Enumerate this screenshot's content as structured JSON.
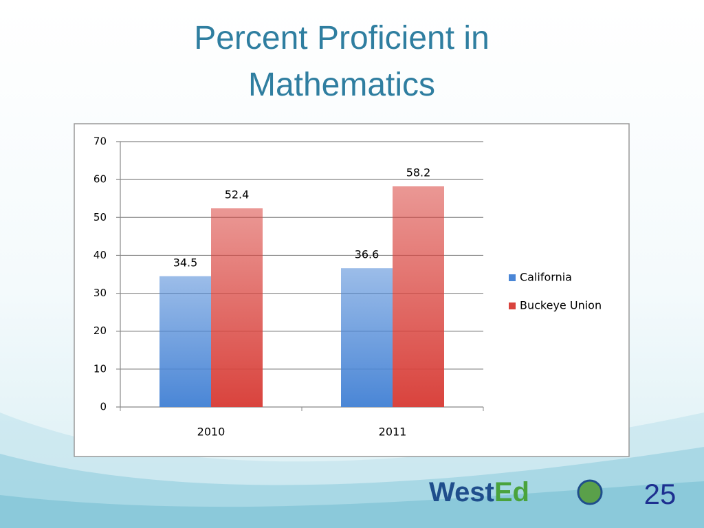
{
  "chart_data": {
    "type": "bar",
    "title": "Percent Proficient in Mathematics",
    "categories": [
      "2010",
      "2011"
    ],
    "series": [
      {
        "name": "California",
        "color": "#4a86d6",
        "values": [
          34.5,
          36.6
        ]
      },
      {
        "name": "Buckeye Union",
        "color": "#d9433d",
        "values": [
          52.4,
          58.2
        ]
      }
    ],
    "ylim": [
      0,
      70
    ],
    "yticks": [
      0,
      10,
      20,
      30,
      40,
      50,
      60,
      70
    ],
    "grid": true,
    "legend": "right"
  },
  "logo": [
    "West",
    "Ed"
  ],
  "page_number": 25
}
